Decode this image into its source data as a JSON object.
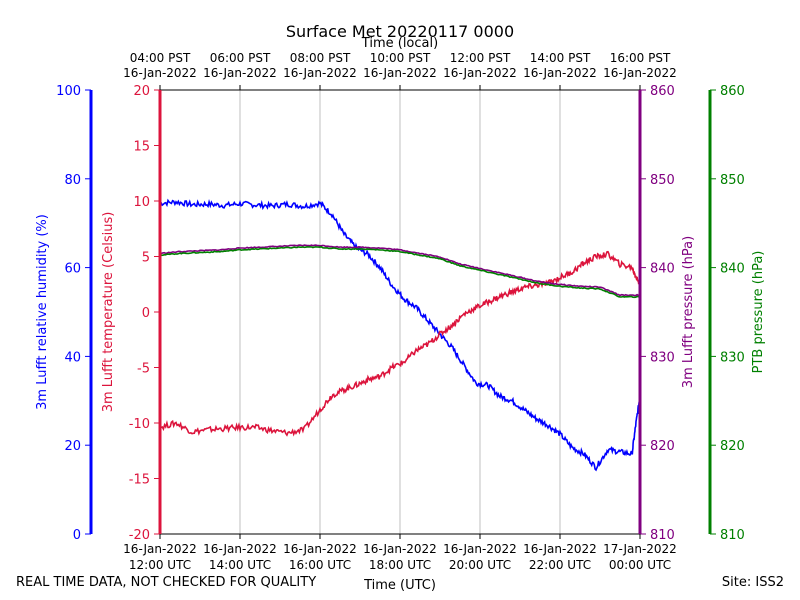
{
  "chart_data": {
    "type": "line",
    "title": "Surface Met 20220117 0000",
    "x_top_label": "Time (local)",
    "x_bottom_label": "Time (UTC)",
    "x_top_ticks": [
      {
        "hour": 12,
        "line1": "04:00 PST",
        "line2": "16-Jan-2022"
      },
      {
        "hour": 14,
        "line1": "06:00 PST",
        "line2": "16-Jan-2022"
      },
      {
        "hour": 16,
        "line1": "08:00 PST",
        "line2": "16-Jan-2022"
      },
      {
        "hour": 18,
        "line1": "10:00 PST",
        "line2": "16-Jan-2022"
      },
      {
        "hour": 20,
        "line1": "12:00 PST",
        "line2": "16-Jan-2022"
      },
      {
        "hour": 22,
        "line1": "14:00 PST",
        "line2": "16-Jan-2022"
      },
      {
        "hour": 24,
        "line1": "16:00 PST",
        "line2": "16-Jan-2022"
      }
    ],
    "x_bottom_ticks": [
      {
        "hour": 12,
        "line1": "16-Jan-2022",
        "line2": "12:00 UTC"
      },
      {
        "hour": 14,
        "line1": "16-Jan-2022",
        "line2": "14:00 UTC"
      },
      {
        "hour": 16,
        "line1": "16-Jan-2022",
        "line2": "16:00 UTC"
      },
      {
        "hour": 18,
        "line1": "16-Jan-2022",
        "line2": "18:00 UTC"
      },
      {
        "hour": 20,
        "line1": "16-Jan-2022",
        "line2": "20:00 UTC"
      },
      {
        "hour": 22,
        "line1": "16-Jan-2022",
        "line2": "22:00 UTC"
      },
      {
        "hour": 24,
        "line1": "17-Jan-2022",
        "line2": "00:00 UTC"
      }
    ],
    "xlim": [
      12,
      24
    ],
    "axes": {
      "humidity": {
        "label": "3m Lufft relative humidity (%)",
        "color": "#0000ff",
        "ylim": [
          0,
          100
        ],
        "ticks": [
          0,
          20,
          40,
          60,
          80,
          100
        ]
      },
      "temperature": {
        "label": "3m Lufft temperature (Celsius)",
        "color": "#dc143c",
        "ylim": [
          -20,
          20
        ],
        "ticks": [
          -20,
          -15,
          -10,
          -5,
          0,
          5,
          10,
          15,
          20
        ]
      },
      "pressure": {
        "label": "3m Lufft pressure (hPa)",
        "color": "#800080",
        "ylim": [
          810,
          860
        ],
        "ticks": [
          810,
          820,
          830,
          840,
          850,
          860
        ]
      },
      "ptb": {
        "label": "PTB pressure (hPa)",
        "color": "#008000",
        "ylim": [
          810,
          860
        ],
        "ticks": [
          810,
          820,
          830,
          840,
          850,
          860
        ]
      }
    },
    "series": [
      {
        "name": "3m Lufft relative humidity (%)",
        "axis": "humidity",
        "color": "#0000ff",
        "x": [
          12.0,
          12.4,
          12.8,
          13.2,
          13.6,
          14.0,
          14.4,
          14.8,
          15.2,
          15.6,
          16.0,
          16.3,
          16.6,
          16.9,
          17.2,
          17.5,
          17.8,
          18.1,
          18.4,
          18.7,
          19.0,
          19.3,
          19.6,
          19.9,
          20.2,
          20.5,
          20.8,
          21.1,
          21.4,
          21.7,
          22.0,
          22.3,
          22.6,
          22.9,
          23.2,
          23.5,
          23.8,
          23.9,
          24.0
        ],
        "y": [
          74.5,
          74.8,
          74.2,
          74.3,
          74.0,
          74.4,
          74.1,
          73.9,
          74.3,
          73.8,
          74.5,
          72.0,
          67.5,
          64.5,
          63.0,
          60.0,
          56.0,
          53.0,
          51.0,
          48.0,
          45.0,
          42.0,
          38.0,
          34.0,
          33.5,
          31.0,
          30.0,
          28.0,
          26.0,
          24.5,
          22.5,
          19.5,
          18.0,
          15.0,
          19.0,
          18.5,
          18.0,
          25.0,
          31.0
        ]
      },
      {
        "name": "3m Lufft temperature (Celsius)",
        "axis": "temperature",
        "color": "#dc143c",
        "x": [
          12.0,
          12.4,
          12.8,
          13.2,
          13.6,
          14.0,
          14.4,
          14.8,
          15.2,
          15.6,
          16.0,
          16.3,
          16.6,
          16.9,
          17.2,
          17.5,
          17.8,
          18.1,
          18.4,
          18.7,
          19.0,
          19.3,
          19.6,
          19.9,
          20.2,
          20.5,
          20.8,
          21.1,
          21.4,
          21.7,
          22.0,
          22.3,
          22.6,
          22.9,
          23.2,
          23.5,
          23.8,
          23.9,
          24.0
        ],
        "y": [
          -10.4,
          -10.0,
          -10.8,
          -10.6,
          -10.5,
          -10.4,
          -10.4,
          -10.7,
          -10.9,
          -10.6,
          -8.8,
          -7.5,
          -7.0,
          -6.6,
          -6.1,
          -5.8,
          -5.0,
          -4.5,
          -3.5,
          -2.9,
          -2.0,
          -1.2,
          -0.2,
          0.4,
          0.9,
          1.4,
          1.8,
          2.2,
          2.4,
          2.6,
          3.1,
          3.6,
          4.4,
          5.0,
          5.2,
          4.3,
          4.0,
          3.2,
          2.5
        ]
      },
      {
        "name": "3m Lufft pressure (hPa)",
        "axis": "pressure",
        "color": "#800080",
        "x": [
          12.0,
          12.5,
          13.0,
          13.5,
          14.0,
          14.5,
          15.0,
          15.5,
          16.0,
          16.5,
          17.0,
          17.5,
          18.0,
          18.5,
          19.0,
          19.5,
          20.0,
          20.5,
          21.0,
          21.5,
          22.0,
          22.5,
          23.0,
          23.5,
          24.0
        ],
        "y": [
          841.6,
          841.8,
          841.9,
          842.0,
          842.2,
          842.3,
          842.4,
          842.5,
          842.5,
          842.3,
          842.3,
          842.2,
          842.0,
          841.6,
          841.2,
          840.4,
          839.9,
          839.4,
          838.9,
          838.4,
          838.1,
          837.9,
          837.8,
          836.9,
          836.9
        ]
      },
      {
        "name": "PTB pressure (hPa)",
        "axis": "ptb",
        "color": "#008000",
        "x": [
          12.0,
          12.5,
          13.0,
          13.5,
          14.0,
          14.5,
          15.0,
          15.5,
          16.0,
          16.5,
          17.0,
          17.5,
          18.0,
          18.5,
          19.0,
          19.5,
          20.0,
          20.5,
          21.0,
          21.5,
          22.0,
          22.5,
          23.0,
          23.5,
          24.0
        ],
        "y": [
          841.4,
          841.6,
          841.7,
          841.8,
          842.0,
          842.1,
          842.2,
          842.3,
          842.3,
          842.1,
          842.1,
          842.0,
          841.8,
          841.4,
          841.0,
          840.2,
          839.7,
          839.2,
          838.7,
          838.2,
          837.9,
          837.7,
          837.6,
          836.7,
          836.7
        ]
      }
    ]
  },
  "footer": {
    "quality_note": "REAL TIME DATA, NOT CHECKED FOR QUALITY",
    "site": "Site: ISS2"
  }
}
